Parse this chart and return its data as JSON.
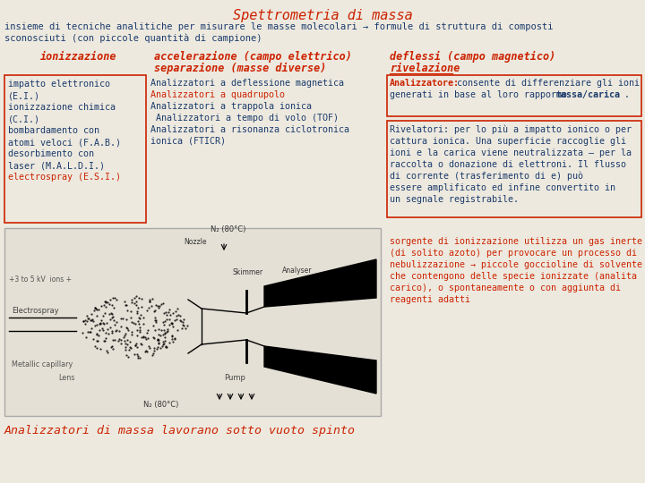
{
  "bg_color": "#ede9df",
  "title": "Spettrometria di massa",
  "title_color": "#cc2200",
  "subtitle_line1": "insieme di tecniche analitiche per misurare le masse molecolari → formule di struttura di composti",
  "subtitle_line2": "sconosciuti (con piccole quantità di campione)",
  "text_color": "#1a3a6b",
  "header_color": "#cc2200",
  "box1_lines": [
    [
      "impatto elettronico",
      "#1a3a6b"
    ],
    [
      "(E.I.)",
      "#1a3a6b"
    ],
    [
      "ionizzazione chimica",
      "#1a3a6b"
    ],
    [
      "(C.I.)",
      "#1a3a6b"
    ],
    [
      "bombardamento con",
      "#1a3a6b"
    ],
    [
      "atomi veloci (F.A.B.)",
      "#1a3a6b"
    ],
    [
      "desorbimento con",
      "#1a3a6b"
    ],
    [
      "laser (M.A.L.D.I.)",
      "#1a3a6b"
    ],
    [
      "electrospray (E.S.I.)",
      "#cc2200"
    ]
  ],
  "box2_lines": [
    [
      "Analizzatori a deflessione magnetica",
      "#1a3a6b"
    ],
    [
      "Analizzatori a quadrupolo",
      "#cc2200"
    ],
    [
      "Analizzatori a trappola ionica",
      "#1a3a6b"
    ],
    [
      " Analizzatori a tempo di volo (TOF)",
      "#1a3a6b"
    ],
    [
      "Analizzatori a risonanza ciclotronica",
      "#1a3a6b"
    ],
    [
      "ionica (FTICR)",
      "#1a3a6b"
    ]
  ],
  "box3_text1": "Analizzatore:",
  "box3_text2": " consente di differenziare gli ioni",
  "box3_text3": "generati in base al loro rapporto ",
  "box3_bold": "massa/carica",
  "box3_end": ".",
  "box4_lines": [
    "Rivelatori: per lo più a impatto ionico o per",
    "cattura ionica. Una superficie raccoglie gli",
    "ioni e la carica viene neutralizzata – per la",
    "raccolta o donazione di elettroni. Il flusso",
    "di corrente (trasferimento di e) può",
    "essere amplificato ed infine convertito in",
    "un segnale registrabile."
  ],
  "bottom_lines": [
    "sorgente di ionizzazione utilizza un gas inerte",
    "(di solito azoto) per provocare un processo di",
    "nebulizzazione → piccole goccioline di solvente",
    "che contengono delle specie ionizzate (analita",
    "carico), o spontaneamente o con aggiunta di",
    "reagenti adatti"
  ],
  "bottom_color": "#cc2200",
  "footer": "Analizzatori di massa lavorano sotto vuoto spinto",
  "footer_color": "#cc2200"
}
